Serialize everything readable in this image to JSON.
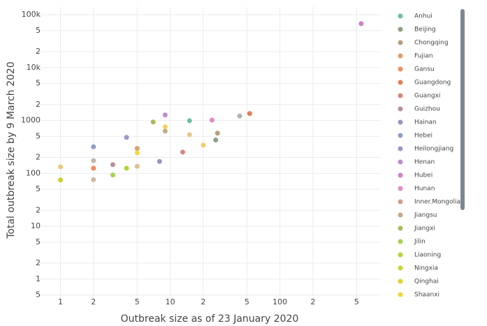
{
  "chart_data": {
    "type": "scatter",
    "x_label": "Outbreak size as of 23 January 2020",
    "y_label": "Total outbreak size by 9 March 2020",
    "log_x": true,
    "log_y": true,
    "grid": true,
    "xlim": [
      0.63,
      830
    ],
    "ylim": [
      0.4,
      140000
    ],
    "xticks": [
      1,
      2,
      5,
      10,
      {
        "value": 20,
        "label": "2"
      },
      {
        "value": 50,
        "label": "5"
      },
      100,
      {
        "value": 200,
        "label": "2"
      },
      {
        "value": 500,
        "label": "5"
      }
    ],
    "yticks": [
      {
        "value": 0.5,
        "label": "5"
      },
      1,
      2,
      5,
      10,
      {
        "value": 20,
        "label": "2"
      },
      {
        "value": 50,
        "label": "5"
      },
      100,
      {
        "value": 200,
        "label": "2"
      },
      {
        "value": 500,
        "label": "5"
      },
      1000,
      {
        "value": 2000,
        "label": "2"
      },
      {
        "value": 5000,
        "label": "5"
      },
      {
        "value": 10000,
        "label": "10k"
      },
      {
        "value": 20000,
        "label": "2"
      },
      {
        "value": 50000,
        "label": "5"
      },
      {
        "value": 100000,
        "label": "100k"
      }
    ],
    "series": [
      {
        "name": "Anhui",
        "color": "#66c2a5",
        "x": [
          15
        ],
        "values": [
          990
        ]
      },
      {
        "name": "Beijing",
        "color": "#8aa283",
        "x": [
          26
        ],
        "values": [
          428
        ]
      },
      {
        "name": "Chongqing",
        "color": "#b5a07a",
        "x": [
          27
        ],
        "values": [
          576
        ]
      },
      {
        "name": "Fujian",
        "color": "#d9a06e",
        "x": [
          5
        ],
        "values": [
          296
        ]
      },
      {
        "name": "Gansu",
        "color": "#f08c5e",
        "x": [
          2
        ],
        "values": [
          125
        ]
      },
      {
        "name": "Guangdong",
        "color": "#e27f56",
        "x": [
          53
        ],
        "values": [
          1352
        ]
      },
      {
        "name": "Guangxi",
        "color": "#d3877c",
        "x": [
          13
        ],
        "values": [
          252
        ]
      },
      {
        "name": "Guizhou",
        "color": "#b88f9f",
        "x": [
          3
        ],
        "values": [
          146
        ]
      },
      {
        "name": "Hainan",
        "color": "#9a95bd",
        "x": [
          8
        ],
        "values": [
          168
        ]
      },
      {
        "name": "Hebei",
        "color": "#8c9fc8",
        "x": [
          2
        ],
        "values": [
          318
        ]
      },
      {
        "name": "Heilongjiang",
        "color": "#a294c8",
        "x": [
          4
        ],
        "values": [
          480
        ]
      },
      {
        "name": "Henan",
        "color": "#bb8fce",
        "x": [
          9
        ],
        "values": [
          1272
        ]
      },
      {
        "name": "Hubei",
        "color": "#d07fc4",
        "x": [
          549
        ],
        "values": [
          67760
        ]
      },
      {
        "name": "Hunan",
        "color": "#e28ac4",
        "x": [
          24
        ],
        "values": [
          1018
        ]
      },
      {
        "name": "Inner.Mongolia",
        "color": "#cfa08f",
        "x": [
          1
        ],
        "values": [
          75
        ]
      },
      {
        "name": "Jiangsu",
        "color": "#c4a888",
        "x": [
          9
        ],
        "values": [
          631
        ]
      },
      {
        "name": "Jiangxi",
        "color": "#b0b75a",
        "x": [
          7
        ],
        "values": [
          935
        ]
      },
      {
        "name": "Jilin",
        "color": "#a8d055",
        "x": [
          3
        ],
        "values": [
          93
        ]
      },
      {
        "name": "Liaoning",
        "color": "#b5d33e",
        "x": [
          4
        ],
        "values": [
          125
        ]
      },
      {
        "name": "Ningxia",
        "color": "#c9d52f",
        "x": [
          1
        ],
        "values": [
          75
        ]
      },
      {
        "name": "Qinghai",
        "color": "#ddd42b",
        "x": [],
        "values": []
      },
      {
        "name": "Shaanxi",
        "color": "#f2d63a",
        "x": [
          5
        ],
        "values": [
          245
        ]
      },
      {
        "color": "#f4d35a",
        "x": [
          9
        ],
        "values": [
          758
        ]
      },
      {
        "color": "#f0cf6a",
        "x": [
          20
        ],
        "values": [
          342
        ]
      },
      {
        "color": "#edc97a",
        "x": [
          1
        ],
        "values": [
          133
        ]
      },
      {
        "color": "#e8c686",
        "x": [
          15
        ],
        "values": [
          539
        ]
      },
      {
        "color": "#dcc190",
        "x": [
          5
        ],
        "values": [
          136
        ]
      },
      {
        "color": "#cfbb9c",
        "x": [
          2
        ],
        "values": [
          76
        ]
      },
      {
        "color": "#c3b8a8",
        "x": [
          2
        ],
        "values": [
          174
        ]
      },
      {
        "color": "#b3b3b3",
        "x": [
          43
        ],
        "values": [
          1215
        ]
      }
    ]
  }
}
